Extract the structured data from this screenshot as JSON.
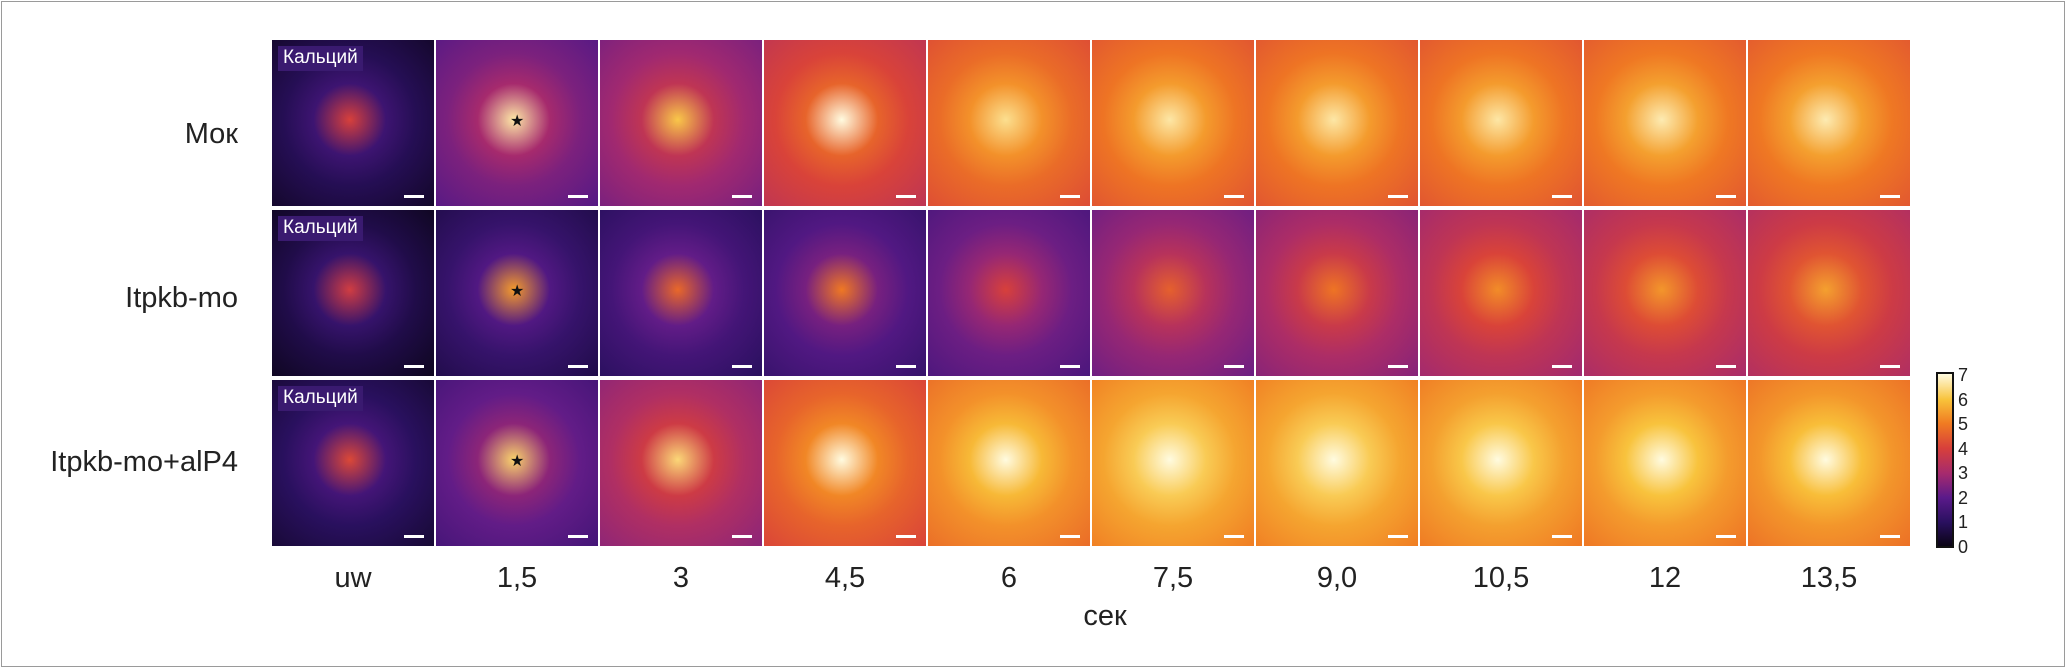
{
  "rows": [
    {
      "label": "Мок",
      "tile_label": "Кальций"
    },
    {
      "label": "Itpkb-mo",
      "tile_label": "Кальций"
    },
    {
      "label": "Itpkb-mo+alP4",
      "tile_label": "Кальций"
    }
  ],
  "time_points": [
    "uw",
    "1,5",
    "3",
    "4,5",
    "6",
    "7,5",
    "9,0",
    "10,5",
    "12",
    "13,5"
  ],
  "x_axis_label": "сек",
  "colorbar": {
    "ticks": [
      "7",
      "6",
      "5",
      "4",
      "3",
      "2",
      "1",
      "0"
    ],
    "colors": [
      "#0a0414",
      "#2a1060",
      "#5a1a8a",
      "#a52a6e",
      "#d8403a",
      "#f07a22",
      "#f8c23a",
      "#fffbe0"
    ]
  },
  "intensity": [
    [
      0.12,
      0.35,
      0.42,
      0.58,
      0.68,
      0.7,
      0.7,
      0.7,
      0.71,
      0.71
    ],
    [
      0.1,
      0.18,
      0.22,
      0.26,
      0.32,
      0.4,
      0.45,
      0.5,
      0.52,
      0.54
    ],
    [
      0.14,
      0.3,
      0.46,
      0.66,
      0.76,
      0.8,
      0.8,
      0.79,
      0.78,
      0.77
    ]
  ]
}
